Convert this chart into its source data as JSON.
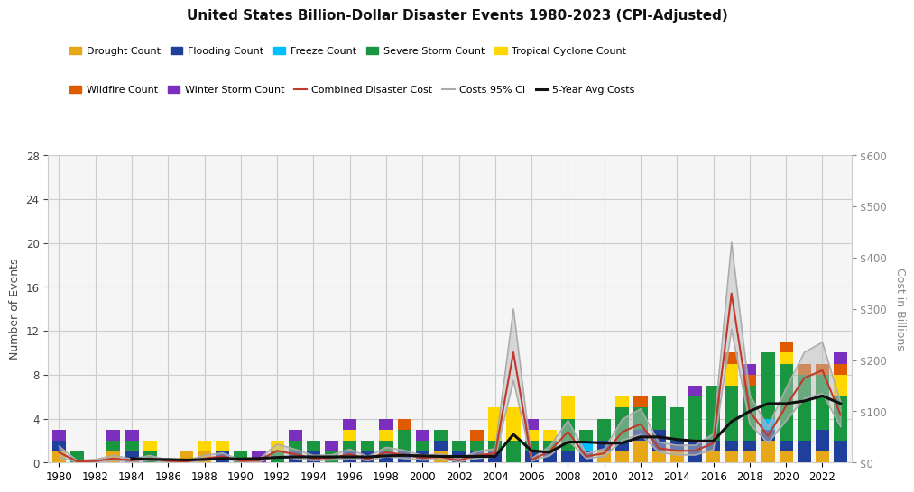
{
  "title": "United States Billion-Dollar Disaster Events 1980-2023 (CPI-Adjusted)",
  "ylabel_left": "Number of Events",
  "ylabel_right": "Cost in Billions",
  "years": [
    1980,
    1981,
    1982,
    1983,
    1984,
    1985,
    1986,
    1987,
    1988,
    1989,
    1990,
    1991,
    1992,
    1993,
    1994,
    1995,
    1996,
    1997,
    1998,
    1999,
    2000,
    2001,
    2002,
    2003,
    2004,
    2005,
    2006,
    2007,
    2008,
    2009,
    2010,
    2011,
    2012,
    2013,
    2014,
    2015,
    2016,
    2017,
    2018,
    2019,
    2020,
    2021,
    2022,
    2023
  ],
  "drought": [
    1,
    0,
    0,
    1,
    0,
    0,
    0,
    1,
    1,
    0,
    0,
    0,
    0,
    0,
    0,
    0,
    0,
    0,
    0,
    0,
    0,
    1,
    0,
    0,
    0,
    0,
    0,
    0,
    0,
    0,
    1,
    1,
    2,
    1,
    1,
    0,
    1,
    1,
    1,
    2,
    1,
    0,
    1,
    0
  ],
  "flooding": [
    1,
    0,
    0,
    0,
    1,
    0,
    0,
    0,
    0,
    1,
    0,
    0,
    0,
    1,
    1,
    0,
    1,
    1,
    1,
    1,
    1,
    1,
    1,
    1,
    1,
    0,
    1,
    1,
    1,
    1,
    1,
    1,
    1,
    2,
    1,
    2,
    1,
    1,
    1,
    1,
    1,
    2,
    2,
    2
  ],
  "freeze": [
    0,
    0,
    0,
    0,
    0,
    0,
    0,
    0,
    0,
    0,
    0,
    0,
    0,
    0,
    0,
    0,
    0,
    0,
    0,
    0,
    0,
    0,
    0,
    0,
    0,
    0,
    0,
    0,
    0,
    1,
    0,
    0,
    0,
    0,
    0,
    0,
    0,
    0,
    0,
    1,
    0,
    0,
    0,
    0
  ],
  "severe_storm": [
    0,
    1,
    0,
    1,
    1,
    1,
    0,
    0,
    0,
    0,
    1,
    0,
    1,
    1,
    1,
    1,
    1,
    1,
    1,
    2,
    1,
    1,
    1,
    1,
    1,
    2,
    1,
    1,
    3,
    1,
    2,
    3,
    2,
    3,
    3,
    4,
    5,
    5,
    5,
    6,
    7,
    6,
    5,
    4
  ],
  "tropical": [
    0,
    0,
    0,
    0,
    0,
    1,
    0,
    0,
    1,
    1,
    0,
    0,
    1,
    0,
    0,
    0,
    1,
    0,
    1,
    0,
    0,
    0,
    0,
    0,
    3,
    3,
    1,
    1,
    2,
    0,
    0,
    1,
    0,
    0,
    0,
    0,
    0,
    2,
    0,
    0,
    1,
    0,
    0,
    2
  ],
  "wildfire": [
    0,
    0,
    0,
    0,
    0,
    0,
    0,
    0,
    0,
    0,
    0,
    0,
    0,
    0,
    0,
    0,
    0,
    0,
    0,
    1,
    0,
    0,
    0,
    1,
    0,
    0,
    0,
    0,
    0,
    0,
    0,
    0,
    1,
    0,
    0,
    0,
    0,
    1,
    1,
    0,
    1,
    1,
    1,
    1
  ],
  "winter_storm": [
    1,
    0,
    0,
    1,
    1,
    0,
    0,
    0,
    0,
    0,
    0,
    1,
    0,
    1,
    0,
    1,
    1,
    0,
    1,
    0,
    1,
    0,
    0,
    0,
    0,
    0,
    1,
    0,
    0,
    0,
    0,
    0,
    0,
    0,
    0,
    1,
    0,
    0,
    1,
    0,
    0,
    0,
    0,
    1
  ],
  "cost": [
    20,
    2,
    3,
    8,
    4,
    8,
    3,
    2,
    8,
    12,
    3,
    4,
    23,
    16,
    8,
    9,
    16,
    7,
    20,
    15,
    9,
    11,
    4,
    14,
    18,
    215,
    5,
    22,
    60,
    12,
    18,
    60,
    75,
    28,
    23,
    23,
    38,
    330,
    100,
    52,
    110,
    165,
    180,
    93
  ],
  "cost_ci_low": [
    10,
    1,
    1,
    4,
    2,
    4,
    1,
    1,
    4,
    7,
    2,
    2,
    12,
    8,
    4,
    5,
    8,
    4,
    12,
    8,
    5,
    6,
    2,
    8,
    12,
    160,
    3,
    14,
    44,
    8,
    12,
    44,
    55,
    20,
    15,
    15,
    25,
    260,
    75,
    38,
    82,
    125,
    135,
    70
  ],
  "cost_ci_high": [
    32,
    4,
    6,
    14,
    7,
    14,
    5,
    4,
    14,
    19,
    5,
    7,
    36,
    26,
    14,
    15,
    26,
    12,
    30,
    24,
    14,
    17,
    7,
    22,
    27,
    300,
    8,
    32,
    82,
    18,
    27,
    85,
    105,
    40,
    34,
    34,
    56,
    430,
    132,
    70,
    145,
    215,
    235,
    118
  ],
  "five_yr_avg": [
    null,
    null,
    null,
    null,
    8,
    6,
    6,
    5,
    6,
    8,
    7,
    8,
    10,
    11,
    11,
    11,
    11,
    11,
    13,
    14,
    13,
    12,
    12,
    12,
    12,
    55,
    23,
    20,
    40,
    40,
    38,
    38,
    50,
    50,
    45,
    42,
    42,
    80,
    100,
    115,
    115,
    120,
    130,
    115
  ],
  "colors": {
    "drought": "#E6A817",
    "flooding": "#1F3F9A",
    "freeze": "#00BFFF",
    "severe_storm": "#1A9641",
    "tropical": "#FFD700",
    "wildfire": "#E05A00",
    "winter_storm": "#7B2FBE",
    "cost_line": "#C0392B",
    "ci_fill": "#BBBBBB",
    "ci_line": "#AAAAAA",
    "five_yr": "#111111"
  },
  "ylim_left": [
    0,
    28
  ],
  "ylim_right": [
    0,
    600
  ],
  "yticks_left": [
    0,
    4,
    8,
    12,
    16,
    20,
    24,
    28
  ],
  "yticks_right": [
    0,
    100,
    200,
    300,
    400,
    500,
    600
  ],
  "bg_color": "#F5F5F5",
  "grid_color": "#CCCCCC"
}
